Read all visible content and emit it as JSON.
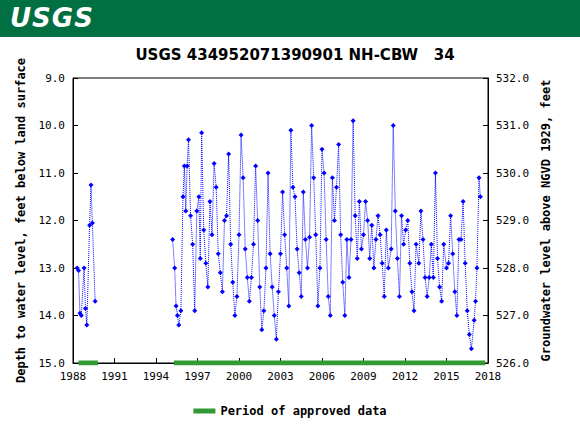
{
  "header": {
    "logo": "USGS"
  },
  "chart_data": {
    "type": "line",
    "title": "USGS 434952071390901 NH-CBW   34",
    "ylabel": "Depth to water level, feet below land surface",
    "y2label": "Groundwater level above NGVD 1929, feet",
    "xlim": [
      1988,
      2018
    ],
    "xticks": [
      1988,
      1991,
      1994,
      1997,
      2000,
      2003,
      2006,
      2009,
      2012,
      2015,
      2018
    ],
    "ylim": [
      15,
      9
    ],
    "yticks": [
      {
        "value": 9,
        "label": "9.0"
      },
      {
        "value": 10,
        "label": "10.0"
      },
      {
        "value": 11,
        "label": "11.0"
      },
      {
        "value": 12,
        "label": "12.0"
      },
      {
        "value": 13,
        "label": "13.0"
      },
      {
        "value": 14,
        "label": "14.0"
      },
      {
        "value": 15,
        "label": "15.0"
      }
    ],
    "y2lim": [
      526,
      532
    ],
    "y2ticks": [
      {
        "value": 526,
        "label": "526.0"
      },
      {
        "value": 527,
        "label": "527.0"
      },
      {
        "value": 528,
        "label": "528.0"
      },
      {
        "value": 529,
        "label": "529.0"
      },
      {
        "value": 530,
        "label": "530.0"
      },
      {
        "value": 531,
        "label": "531.0"
      },
      {
        "value": 532,
        "label": "532.0"
      }
    ],
    "grid": false,
    "legend": "bottom",
    "series": [
      {
        "color": "#0000ff",
        "marker": "diamond",
        "line_style": "dotted",
        "x": [
          1988.3,
          1988.4,
          1988.5,
          1988.6,
          1988.8,
          1988.9,
          1989.0,
          1989.2,
          1989.3,
          1989.4,
          1989.6,
          1992,
          1995.2,
          1995.35,
          1995.45,
          1995.55,
          1995.65,
          1995.8,
          1995.95,
          1996.05,
          1996.15,
          1996.25,
          1996.35,
          1996.5,
          1996.65,
          1996.8,
          1996.95,
          1997.1,
          1997.2,
          1997.3,
          1997.45,
          1997.6,
          1997.75,
          1997.9,
          1998.05,
          1998.2,
          1998.35,
          1998.5,
          1998.65,
          1998.8,
          1998.95,
          1999.1,
          1999.25,
          1999.4,
          1999.55,
          1999.7,
          1999.85,
          2000.0,
          2000.15,
          2000.3,
          2000.45,
          2000.6,
          2000.75,
          2000.9,
          2001.05,
          2001.2,
          2001.35,
          2001.5,
          2001.65,
          2001.8,
          2001.95,
          2002.1,
          2002.25,
          2002.4,
          2002.55,
          2002.7,
          2002.85,
          2003.0,
          2003.15,
          2003.3,
          2003.45,
          2003.6,
          2003.75,
          2003.9,
          2004.05,
          2004.2,
          2004.35,
          2004.5,
          2004.65,
          2004.8,
          2004.95,
          2005.1,
          2005.25,
          2005.4,
          2005.55,
          2005.7,
          2005.85,
          2006.0,
          2006.15,
          2006.3,
          2006.45,
          2006.6,
          2006.75,
          2006.9,
          2007.05,
          2007.2,
          2007.35,
          2007.5,
          2007.65,
          2007.8,
          2007.95,
          2008.1,
          2008.25,
          2008.4,
          2008.55,
          2008.7,
          2008.85,
          2009.0,
          2009.15,
          2009.3,
          2009.45,
          2009.6,
          2009.75,
          2009.9,
          2010.05,
          2010.2,
          2010.35,
          2010.5,
          2010.65,
          2010.8,
          2011.0,
          2011.15,
          2011.3,
          2011.45,
          2011.6,
          2011.75,
          2011.9,
          2012.05,
          2012.2,
          2012.35,
          2012.5,
          2012.65,
          2012.8,
          2013.0,
          2013.15,
          2013.3,
          2013.45,
          2013.6,
          2013.75,
          2013.9,
          2014.05,
          2014.2,
          2014.35,
          2014.5,
          2014.65,
          2014.8,
          2015.0,
          2015.15,
          2015.3,
          2015.45,
          2015.6,
          2015.75,
          2015.9,
          2016.05,
          2016.2,
          2016.35,
          2016.5,
          2016.65,
          2016.8,
          2017.0,
          2017.1,
          2017.2,
          2017.35,
          2017.45
        ],
        "values": [
          13.0,
          13.05,
          13.95,
          14.0,
          13.0,
          13.85,
          14.2,
          12.1,
          11.25,
          12.05,
          13.7,
          null,
          12.4,
          13.0,
          13.8,
          14.0,
          14.2,
          13.9,
          11.5,
          10.85,
          11.8,
          10.85,
          10.3,
          11.9,
          12.5,
          13.9,
          11.8,
          11.5,
          12.8,
          10.15,
          12.2,
          12.9,
          13.4,
          11.6,
          12.3,
          10.8,
          11.3,
          12.7,
          13.1,
          13.5,
          12.0,
          11.9,
          10.6,
          12.5,
          13.3,
          14.0,
          13.6,
          12.3,
          10.2,
          11.1,
          12.6,
          13.2,
          13.7,
          13.2,
          12.5,
          10.85,
          12.0,
          13.4,
          14.3,
          13.9,
          13.0,
          11.0,
          12.7,
          13.4,
          14.0,
          14.5,
          13.5,
          12.7,
          11.4,
          12.3,
          13.0,
          13.8,
          10.1,
          11.3,
          11.5,
          12.6,
          13.1,
          13.6,
          11.4,
          12.4,
          13.0,
          12.35,
          10.0,
          11.1,
          12.3,
          13.8,
          13.0,
          10.5,
          11.0,
          12.4,
          13.6,
          14.0,
          11.1,
          12.0,
          11.3,
          10.4,
          12.3,
          13.3,
          14.0,
          12.4,
          13.2,
          12.4,
          9.9,
          11.9,
          12.8,
          11.6,
          12.6,
          12.3,
          11.6,
          12.0,
          12.8,
          12.1,
          13.0,
          12.4,
          11.9,
          12.3,
          12.9,
          13.6,
          12.2,
          13.0,
          12.6,
          10.0,
          11.8,
          12.8,
          13.6,
          11.9,
          12.5,
          12.2,
          12.0,
          12.9,
          13.5,
          13.9,
          12.5,
          12.9,
          11.8,
          12.4,
          13.2,
          13.6,
          13.2,
          12.5,
          13.2,
          11.0,
          12.8,
          13.4,
          13.7,
          12.5,
          13.0,
          12.9,
          11.9,
          12.7,
          13.5,
          14.0,
          12.4,
          12.4,
          11.6,
          12.9,
          13.9,
          14.4,
          14.7,
          14.1,
          13.7,
          13.0,
          11.1,
          11.5
        ]
      },
      {
        "name": "Period of approved data",
        "color": "#339933",
        "marker": "none",
        "line_style": "solid",
        "x": [
          1988.4,
          1989.8,
          1992,
          1995.3,
          2017.8
        ],
        "values": [
          15,
          15,
          null,
          15,
          15
        ]
      }
    ]
  }
}
